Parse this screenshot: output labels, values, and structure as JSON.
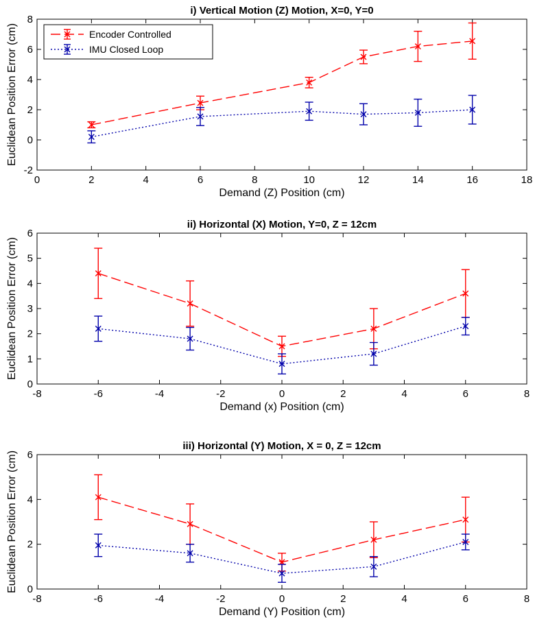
{
  "chart_data": [
    {
      "type": "line",
      "title": "i)  Vertical Motion (Z) Motion, X=0, Y=0",
      "xlabel": "Demand (Z) Position (cm)",
      "ylabel": "Euclidean Position Error (cm)",
      "xlim": [
        0,
        18
      ],
      "ylim": [
        -2,
        8
      ],
      "xticks": [
        0,
        2,
        4,
        6,
        8,
        10,
        12,
        14,
        16,
        18
      ],
      "yticks": [
        -2,
        0,
        2,
        4,
        6,
        8
      ],
      "legend": "top-left",
      "x": [
        2,
        6,
        10,
        12,
        14,
        16
      ],
      "series": [
        {
          "name": "Encoder Controlled",
          "color": "#ff0000",
          "linestyle": "dashed",
          "marker": "x",
          "values": [
            1.0,
            2.45,
            3.8,
            5.5,
            6.2,
            6.55
          ],
          "err": [
            0.2,
            0.45,
            0.35,
            0.45,
            1.0,
            1.2
          ]
        },
        {
          "name": "IMU Closed Loop",
          "color": "#0000aa",
          "linestyle": "dotted",
          "marker": "x",
          "values": [
            0.2,
            1.55,
            1.9,
            1.7,
            1.8,
            2.0
          ],
          "err": [
            0.4,
            0.6,
            0.6,
            0.7,
            0.9,
            0.95
          ]
        }
      ]
    },
    {
      "type": "line",
      "title": "ii) Horizontal (X) Motion, Y=0, Z = 12cm",
      "xlabel": "Demand (x) Position (cm)",
      "ylabel": "Euclidean Position Error (cm)",
      "xlim": [
        -8,
        8
      ],
      "ylim": [
        0,
        6
      ],
      "xticks": [
        -8,
        -6,
        -4,
        -2,
        0,
        2,
        4,
        6,
        8
      ],
      "yticks": [
        0,
        1,
        2,
        3,
        4,
        5,
        6
      ],
      "x": [
        -6,
        -3,
        0,
        3,
        6
      ],
      "series": [
        {
          "color": "#ff0000",
          "linestyle": "dashed",
          "marker": "x",
          "values": [
            4.4,
            3.2,
            1.5,
            2.2,
            3.6
          ],
          "err": [
            1.0,
            0.9,
            0.4,
            0.8,
            0.95
          ]
        },
        {
          "color": "#0000aa",
          "linestyle": "dotted",
          "marker": "x",
          "values": [
            2.2,
            1.8,
            0.8,
            1.2,
            2.3
          ],
          "err": [
            0.5,
            0.45,
            0.4,
            0.45,
            0.35
          ]
        }
      ]
    },
    {
      "type": "line",
      "title": "iii) Horizontal (Y) Motion, X = 0, Z = 12cm",
      "xlabel": "Demand (Y) Position (cm)",
      "ylabel": "Euclidean Position Error (cm)",
      "xlim": [
        -8,
        8
      ],
      "ylim": [
        0,
        6
      ],
      "xticks": [
        -8,
        -6,
        -4,
        -2,
        0,
        2,
        4,
        6,
        8
      ],
      "yticks": [
        0,
        2,
        4,
        6
      ],
      "x": [
        -6,
        -3,
        0,
        3,
        6
      ],
      "series": [
        {
          "color": "#ff0000",
          "linestyle": "dashed",
          "marker": "x",
          "values": [
            4.1,
            2.9,
            1.2,
            2.2,
            3.1
          ],
          "err": [
            1.0,
            0.9,
            0.4,
            0.8,
            1.0
          ]
        },
        {
          "color": "#0000aa",
          "linestyle": "dotted",
          "marker": "x",
          "values": [
            1.95,
            1.6,
            0.7,
            1.0,
            2.1
          ],
          "err": [
            0.5,
            0.4,
            0.4,
            0.45,
            0.35
          ]
        }
      ]
    }
  ]
}
